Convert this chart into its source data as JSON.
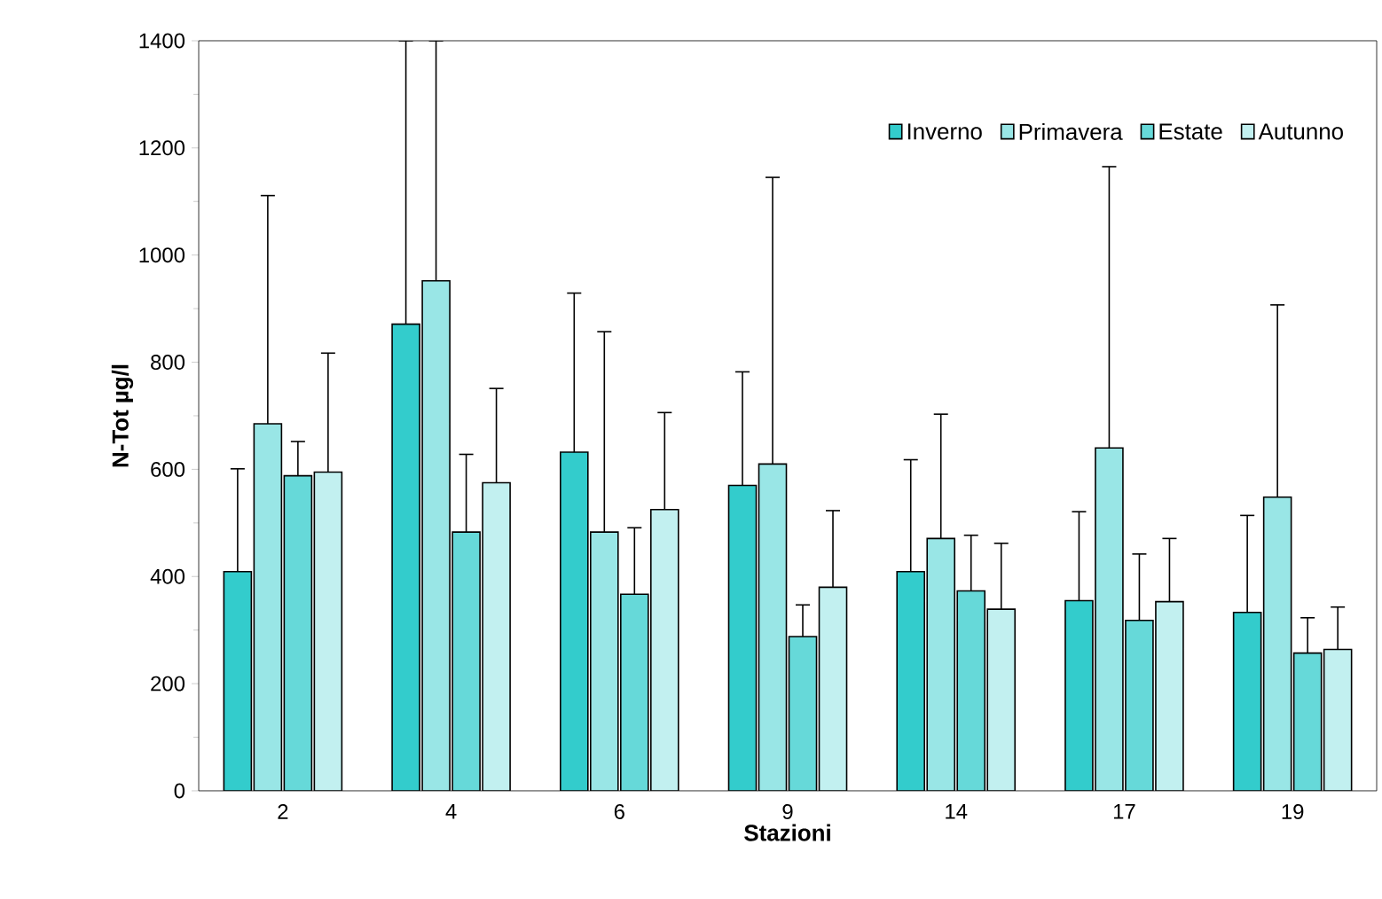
{
  "chart_data": {
    "type": "bar",
    "xlabel": "Stazioni",
    "ylabel": "N-Tot µg/l",
    "categories": [
      "2",
      "4",
      "6",
      "9",
      "14",
      "17",
      "19"
    ],
    "series": [
      {
        "name": "Inverno",
        "color": "#33cccc",
        "values": [
          409,
          871,
          632,
          570,
          409,
          355,
          333
        ],
        "errors": [
          [
            409,
            601
          ],
          [
            871,
            1400
          ],
          [
            632,
            929
          ],
          [
            570,
            782
          ],
          [
            409,
            618
          ],
          [
            355,
            521
          ],
          [
            333,
            514
          ]
        ]
      },
      {
        "name": "Primavera",
        "color": "#99e6e6",
        "values": [
          685,
          952,
          483,
          610,
          471,
          640,
          548
        ],
        "errors": [
          [
            685,
            1111
          ],
          [
            952,
            1400
          ],
          [
            483,
            857
          ],
          [
            610,
            1145
          ],
          [
            471,
            703
          ],
          [
            640,
            1165
          ],
          [
            548,
            907
          ]
        ]
      },
      {
        "name": "Estate",
        "color": "#66d9d9",
        "values": [
          588,
          483,
          367,
          288,
          373,
          318,
          257
        ],
        "errors": [
          [
            588,
            652
          ],
          [
            483,
            628
          ],
          [
            367,
            491
          ],
          [
            288,
            347
          ],
          [
            373,
            477
          ],
          [
            318,
            442
          ],
          [
            257,
            323
          ]
        ]
      },
      {
        "name": "Autunno",
        "color": "#c2f0f0",
        "values": [
          595,
          575,
          525,
          380,
          339,
          353,
          264
        ],
        "errors": [
          [
            595,
            817
          ],
          [
            575,
            751
          ],
          [
            525,
            706
          ],
          [
            380,
            523
          ],
          [
            339,
            462
          ],
          [
            353,
            471
          ],
          [
            264,
            343
          ]
        ]
      }
    ],
    "ylim": [
      0,
      1400
    ],
    "yticks": [
      0,
      200,
      400,
      600,
      800,
      1000,
      1200,
      1400
    ],
    "legend": "top right"
  }
}
